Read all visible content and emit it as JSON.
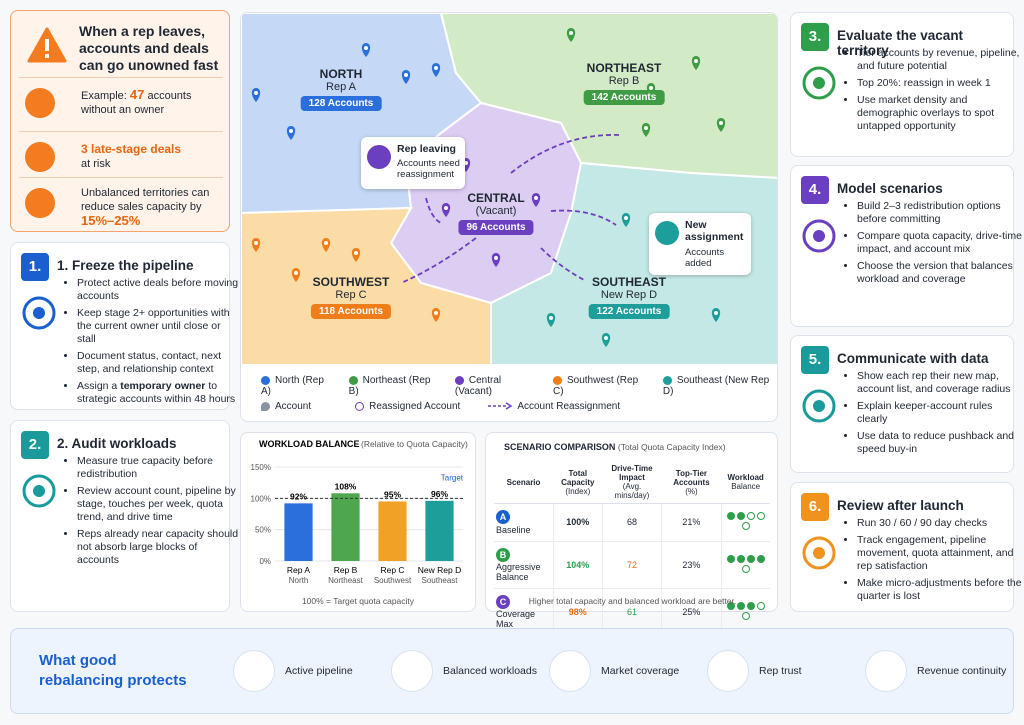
{
  "alert": {
    "title": "When a rep leaves, accounts and deals can go unowned fast",
    "items": [
      [
        "Example:",
        "47",
        "accounts without an owner"
      ],
      [
        "3 late-stage deals",
        "at risk"
      ],
      [
        "Unbalanced territories can reduce sales capacity by",
        "15%–25%"
      ]
    ]
  },
  "steps": [
    {
      "badge": "1.",
      "title": "1. Freeze the pipeline",
      "color": "#1a5fd0",
      "bullets": [
        "Protect active deals before moving accounts",
        "Keep stage 2+ opportunities with the current owner until close or stall",
        "Document status, contact, next step, and relationship context",
        [
          "Assign a",
          "temporary owner",
          "to strategic accounts within 48 hours"
        ]
      ]
    },
    {
      "badge": "2.",
      "title": "2. Audit workloads",
      "color": "#1a9a9a",
      "bullets": [
        "Measure true capacity before redistribution",
        "Review account count, pipeline by stage, touches per week, quota trend, and drive time",
        "Reps already near capacity should not absorb large blocks of accounts"
      ]
    },
    {
      "badge": "3.",
      "title": "Evaluate the vacant territory",
      "color": "#2e9e4a",
      "bullets": [
        "Tier accounts by revenue, pipeline, and future potential",
        "Top 20%: reassign in week 1",
        "Use market density and demographic overlays to spot untapped opportunity"
      ]
    },
    {
      "badge": "4.",
      "title": "Model scenarios",
      "color": "#6a3fc0",
      "bullets": [
        "Build 2–3 redistribution options before committing",
        "Compare quota capacity, drive-time impact, and account mix",
        "Choose the version that balances workload and coverage"
      ]
    },
    {
      "badge": "5.",
      "title": "Communicate with data",
      "color": "#1a9a9a",
      "bullets": [
        "Show each rep their new map, account list, and coverage radius",
        "Explain keeper-account rules clearly",
        "Use data to reduce pushback and speed buy-in"
      ]
    },
    {
      "badge": "6.",
      "title": "Review after launch",
      "color": "#f0921e",
      "bullets": [
        "Run 30 / 60 / 90 day checks",
        "Track engagement, pipeline movement, quota attainment, and rep satisfaction",
        "Make micro-adjustments before the quarter is lost"
      ]
    }
  ],
  "map": {
    "territories": [
      {
        "name": "NORTH",
        "rep": "Rep A",
        "accounts": "128 Accounts",
        "color": "#2a6fdb",
        "fill": "#c5d9f6"
      },
      {
        "name": "NORTHEAST",
        "rep": "Rep B",
        "accounts": "142 Accounts",
        "color": "#3f9c45",
        "fill": "#d3eac6"
      },
      {
        "name": "CENTRAL",
        "rep": "(Vacant)",
        "accounts": "96 Accounts",
        "color": "#6a3fc0",
        "fill": "#dccdf3"
      },
      {
        "name": "SOUTHWEST",
        "rep": "Rep C",
        "accounts": "118 Accounts",
        "color": "#ef7d1a",
        "fill": "#fbdca6"
      },
      {
        "name": "SOUTHEAST",
        "rep": "New Rep D",
        "accounts": "122 Accounts",
        "color": "#1e9e9b",
        "fill": "#c4e8e5"
      }
    ],
    "leaving": {
      "title": "Rep leaving",
      "text": "Accounts need reassignment"
    },
    "new_assignment": {
      "title": "New assignment",
      "text": "Accounts added"
    },
    "legend": [
      "North (Rep A)",
      "Northeast (Rep B)",
      "Central (Vacant)",
      "Southwest (Rep C)",
      "Southeast (New Rep D)"
    ],
    "legend_symbols": [
      "Account",
      "Reassigned Account",
      "Account Reassignment"
    ]
  },
  "chart_data": {
    "type": "bar",
    "title": "WORKLOAD BALANCE",
    "subtitle": "(Relative to Quota Capacity)",
    "categories": [
      "Rep A",
      "Rep B",
      "Rep C",
      "New Rep D"
    ],
    "sublabels": [
      "North",
      "Northeast",
      "Southwest",
      "Southeast"
    ],
    "values": [
      92,
      108,
      95,
      96
    ],
    "value_labels": [
      "92%",
      "108%",
      "95%",
      "96%"
    ],
    "colors": [
      "#2a6fdb",
      "#4ea64f",
      "#f2a127",
      "#1e9e9b"
    ],
    "ylim": [
      0,
      150
    ],
    "yticks": [
      {
        "value": 0,
        "label": "0%"
      },
      {
        "value": 50,
        "label": "50%"
      },
      {
        "value": 100,
        "label": "100%"
      },
      {
        "value": 150,
        "label": "150%"
      }
    ],
    "target": {
      "value": 100,
      "label": "Target"
    },
    "note": "100% = Target quota capacity"
  },
  "scenario": {
    "title": "SCENARIO COMPARISON",
    "subtitle": "(Total Quota Capacity Index)",
    "headers": [
      [
        "Scenario"
      ],
      [
        "Total Capacity",
        "(Index)"
      ],
      [
        "Drive-Time Impact",
        "(Avg. mins/day)"
      ],
      [
        "Top-Tier Accounts",
        "(%)"
      ],
      [
        "Workload",
        "Balance"
      ]
    ],
    "rows": [
      {
        "badge": "A",
        "name": "Baseline",
        "capacity": "100%",
        "drive": "68",
        "top_tier": "21%",
        "balance": 2
      },
      {
        "badge": "B",
        "name": "Aggressive Balance",
        "capacity": "104%",
        "drive": "72",
        "top_tier": "23%",
        "balance": 4
      },
      {
        "badge": "C",
        "name": "Coverage Max",
        "capacity": "98%",
        "drive": "61",
        "top_tier": "25%",
        "balance": 3
      }
    ],
    "balance_max": 5,
    "note": "Higher total capacity and balanced workload are better."
  },
  "footer": {
    "title": "What good rebalancing protects",
    "items": [
      "Active pipeline",
      "Balanced workloads",
      "Market coverage",
      "Rep trust",
      "Revenue continuity"
    ]
  }
}
